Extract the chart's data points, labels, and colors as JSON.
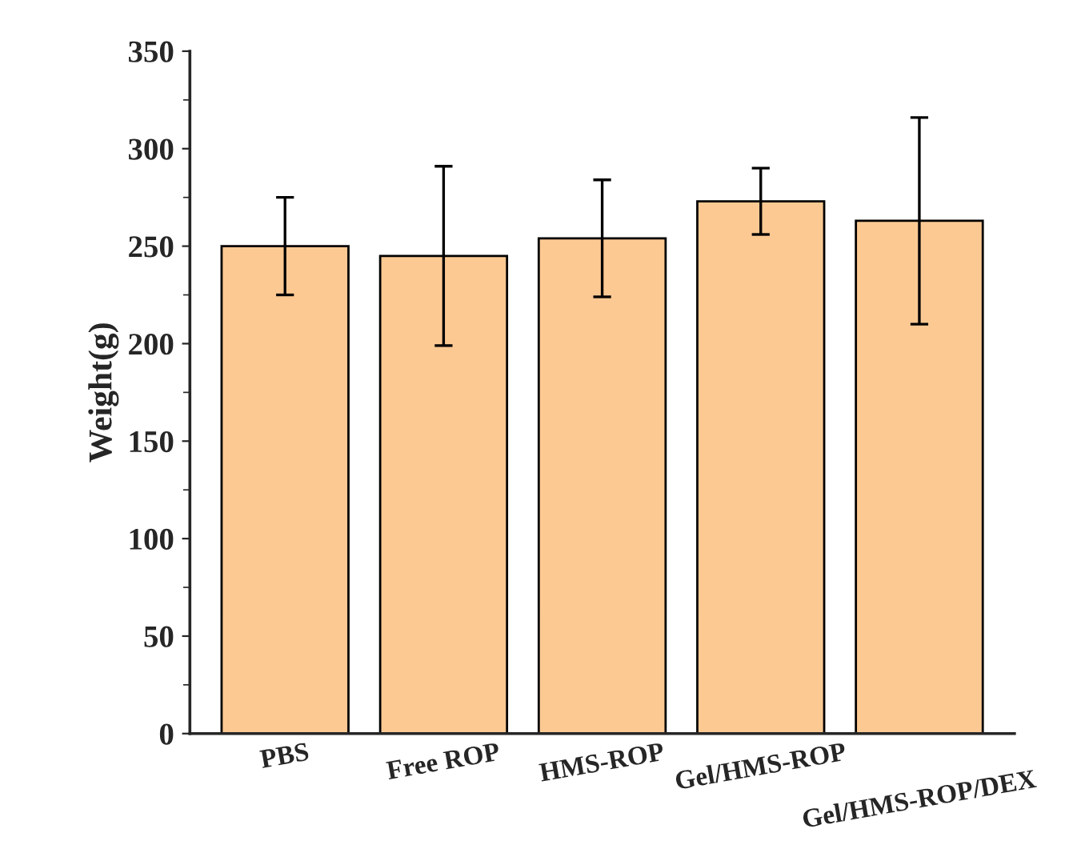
{
  "chart_data": {
    "type": "bar",
    "ylabel": "Weight(g)",
    "categories": [
      "PBS",
      "Free ROP",
      "HMS-ROP",
      "Gel/HMS-ROP",
      "Gel/HMS-ROP/DEX"
    ],
    "values": [
      250,
      245,
      254,
      273,
      263
    ],
    "errors": [
      [
        225,
        275
      ],
      [
        199,
        291
      ],
      [
        224,
        284
      ],
      [
        256,
        290
      ],
      [
        210,
        316
      ]
    ],
    "color": "#fdc993",
    "ylim": [
      0,
      350
    ],
    "yticks": [
      0,
      50,
      100,
      150,
      200,
      250,
      300,
      350
    ],
    "grid": false,
    "legend": false
  }
}
